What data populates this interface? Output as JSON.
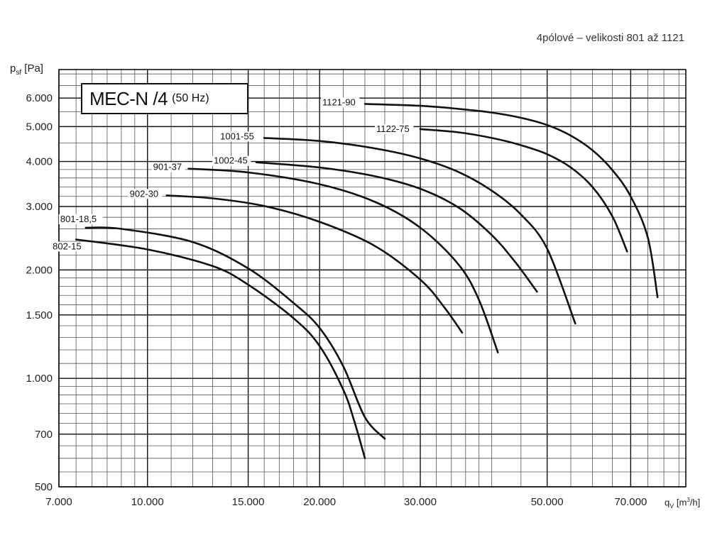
{
  "subtitle": "4pólové – velikosti 801 až 1121",
  "title_box": {
    "main": "MEC-N /4",
    "sub": "(50 Hz)"
  },
  "axis": {
    "y_label_main": "p",
    "y_label_sub": "sf",
    "y_label_unit": " [Pa]",
    "x_label_main": "q",
    "x_label_sub": "V",
    "x_label_unit_pre": " [m",
    "x_label_unit_sup": "3",
    "x_label_unit_post": "/h]"
  },
  "chart_data": {
    "type": "line",
    "title": "MEC-N /4 (50 Hz)",
    "subtitle": "4pólové – velikosti 801 až 1121",
    "xlabel": "qV [m3/h]",
    "ylabel": "psf [Pa]",
    "x_scale": "log",
    "y_scale": "log",
    "xlim": [
      7000,
      90000
    ],
    "ylim": [
      500,
      7000
    ],
    "grid": true,
    "x_ticks": [
      7000,
      10000,
      15000,
      20000,
      30000,
      50000,
      70000
    ],
    "x_tick_labels": [
      "7.000",
      "10.000",
      "15.000",
      "20.000",
      "30.000",
      "50.000",
      "70.000"
    ],
    "y_ticks": [
      500,
      700,
      1000,
      1500,
      2000,
      3000,
      4000,
      5000,
      6000
    ],
    "y_tick_labels": [
      "500",
      "700",
      "1.000",
      "1.500",
      "2.000",
      "3.000",
      "4.000",
      "5.000",
      "6.000"
    ],
    "series": [
      {
        "name": "801-18,5",
        "points": [
          [
            7800,
            2620
          ],
          [
            9000,
            2600
          ],
          [
            12000,
            2390
          ],
          [
            15000,
            2020
          ],
          [
            18000,
            1620
          ],
          [
            20000,
            1380
          ],
          [
            22000,
            1080
          ],
          [
            24000,
            780
          ],
          [
            26000,
            680
          ]
        ]
      },
      {
        "name": "802-15",
        "points": [
          [
            7500,
            2430
          ],
          [
            10000,
            2280
          ],
          [
            13000,
            2050
          ],
          [
            15000,
            1820
          ],
          [
            18000,
            1470
          ],
          [
            20000,
            1230
          ],
          [
            22000,
            930
          ],
          [
            23000,
            760
          ],
          [
            24000,
            600
          ]
        ]
      },
      {
        "name": "902-30",
        "points": [
          [
            10800,
            3220
          ],
          [
            13000,
            3160
          ],
          [
            16000,
            3010
          ],
          [
            20000,
            2720
          ],
          [
            25000,
            2330
          ],
          [
            30000,
            1880
          ],
          [
            33000,
            1580
          ],
          [
            35500,
            1340
          ]
        ]
      },
      {
        "name": "901-37",
        "points": [
          [
            11800,
            3820
          ],
          [
            15000,
            3730
          ],
          [
            20000,
            3460
          ],
          [
            25000,
            3090
          ],
          [
            30000,
            2620
          ],
          [
            35000,
            2070
          ],
          [
            38000,
            1650
          ],
          [
            41000,
            1180
          ]
        ]
      },
      {
        "name": "1002-45",
        "points": [
          [
            15500,
            3980
          ],
          [
            20000,
            3850
          ],
          [
            25000,
            3640
          ],
          [
            30000,
            3360
          ],
          [
            35000,
            2980
          ],
          [
            40000,
            2500
          ],
          [
            44000,
            2100
          ],
          [
            48000,
            1740
          ]
        ]
      },
      {
        "name": "1001-55",
        "points": [
          [
            16000,
            4650
          ],
          [
            20000,
            4560
          ],
          [
            25000,
            4350
          ],
          [
            30000,
            4080
          ],
          [
            35000,
            3740
          ],
          [
            40000,
            3320
          ],
          [
            45000,
            2850
          ],
          [
            50000,
            2290
          ],
          [
            56000,
            1420
          ]
        ]
      },
      {
        "name": "1122-75",
        "points": [
          [
            30000,
            4920
          ],
          [
            35000,
            4820
          ],
          [
            40000,
            4650
          ],
          [
            45000,
            4440
          ],
          [
            50000,
            4190
          ],
          [
            55000,
            3850
          ],
          [
            60000,
            3400
          ],
          [
            65000,
            2820
          ],
          [
            69000,
            2250
          ]
        ]
      },
      {
        "name": "1121-90",
        "points": [
          [
            24000,
            5780
          ],
          [
            30000,
            5710
          ],
          [
            35000,
            5600
          ],
          [
            40000,
            5470
          ],
          [
            45000,
            5290
          ],
          [
            50000,
            5050
          ],
          [
            55000,
            4720
          ],
          [
            60000,
            4300
          ],
          [
            65000,
            3790
          ],
          [
            70000,
            3200
          ],
          [
            75000,
            2460
          ],
          [
            78000,
            1680
          ]
        ]
      }
    ]
  }
}
